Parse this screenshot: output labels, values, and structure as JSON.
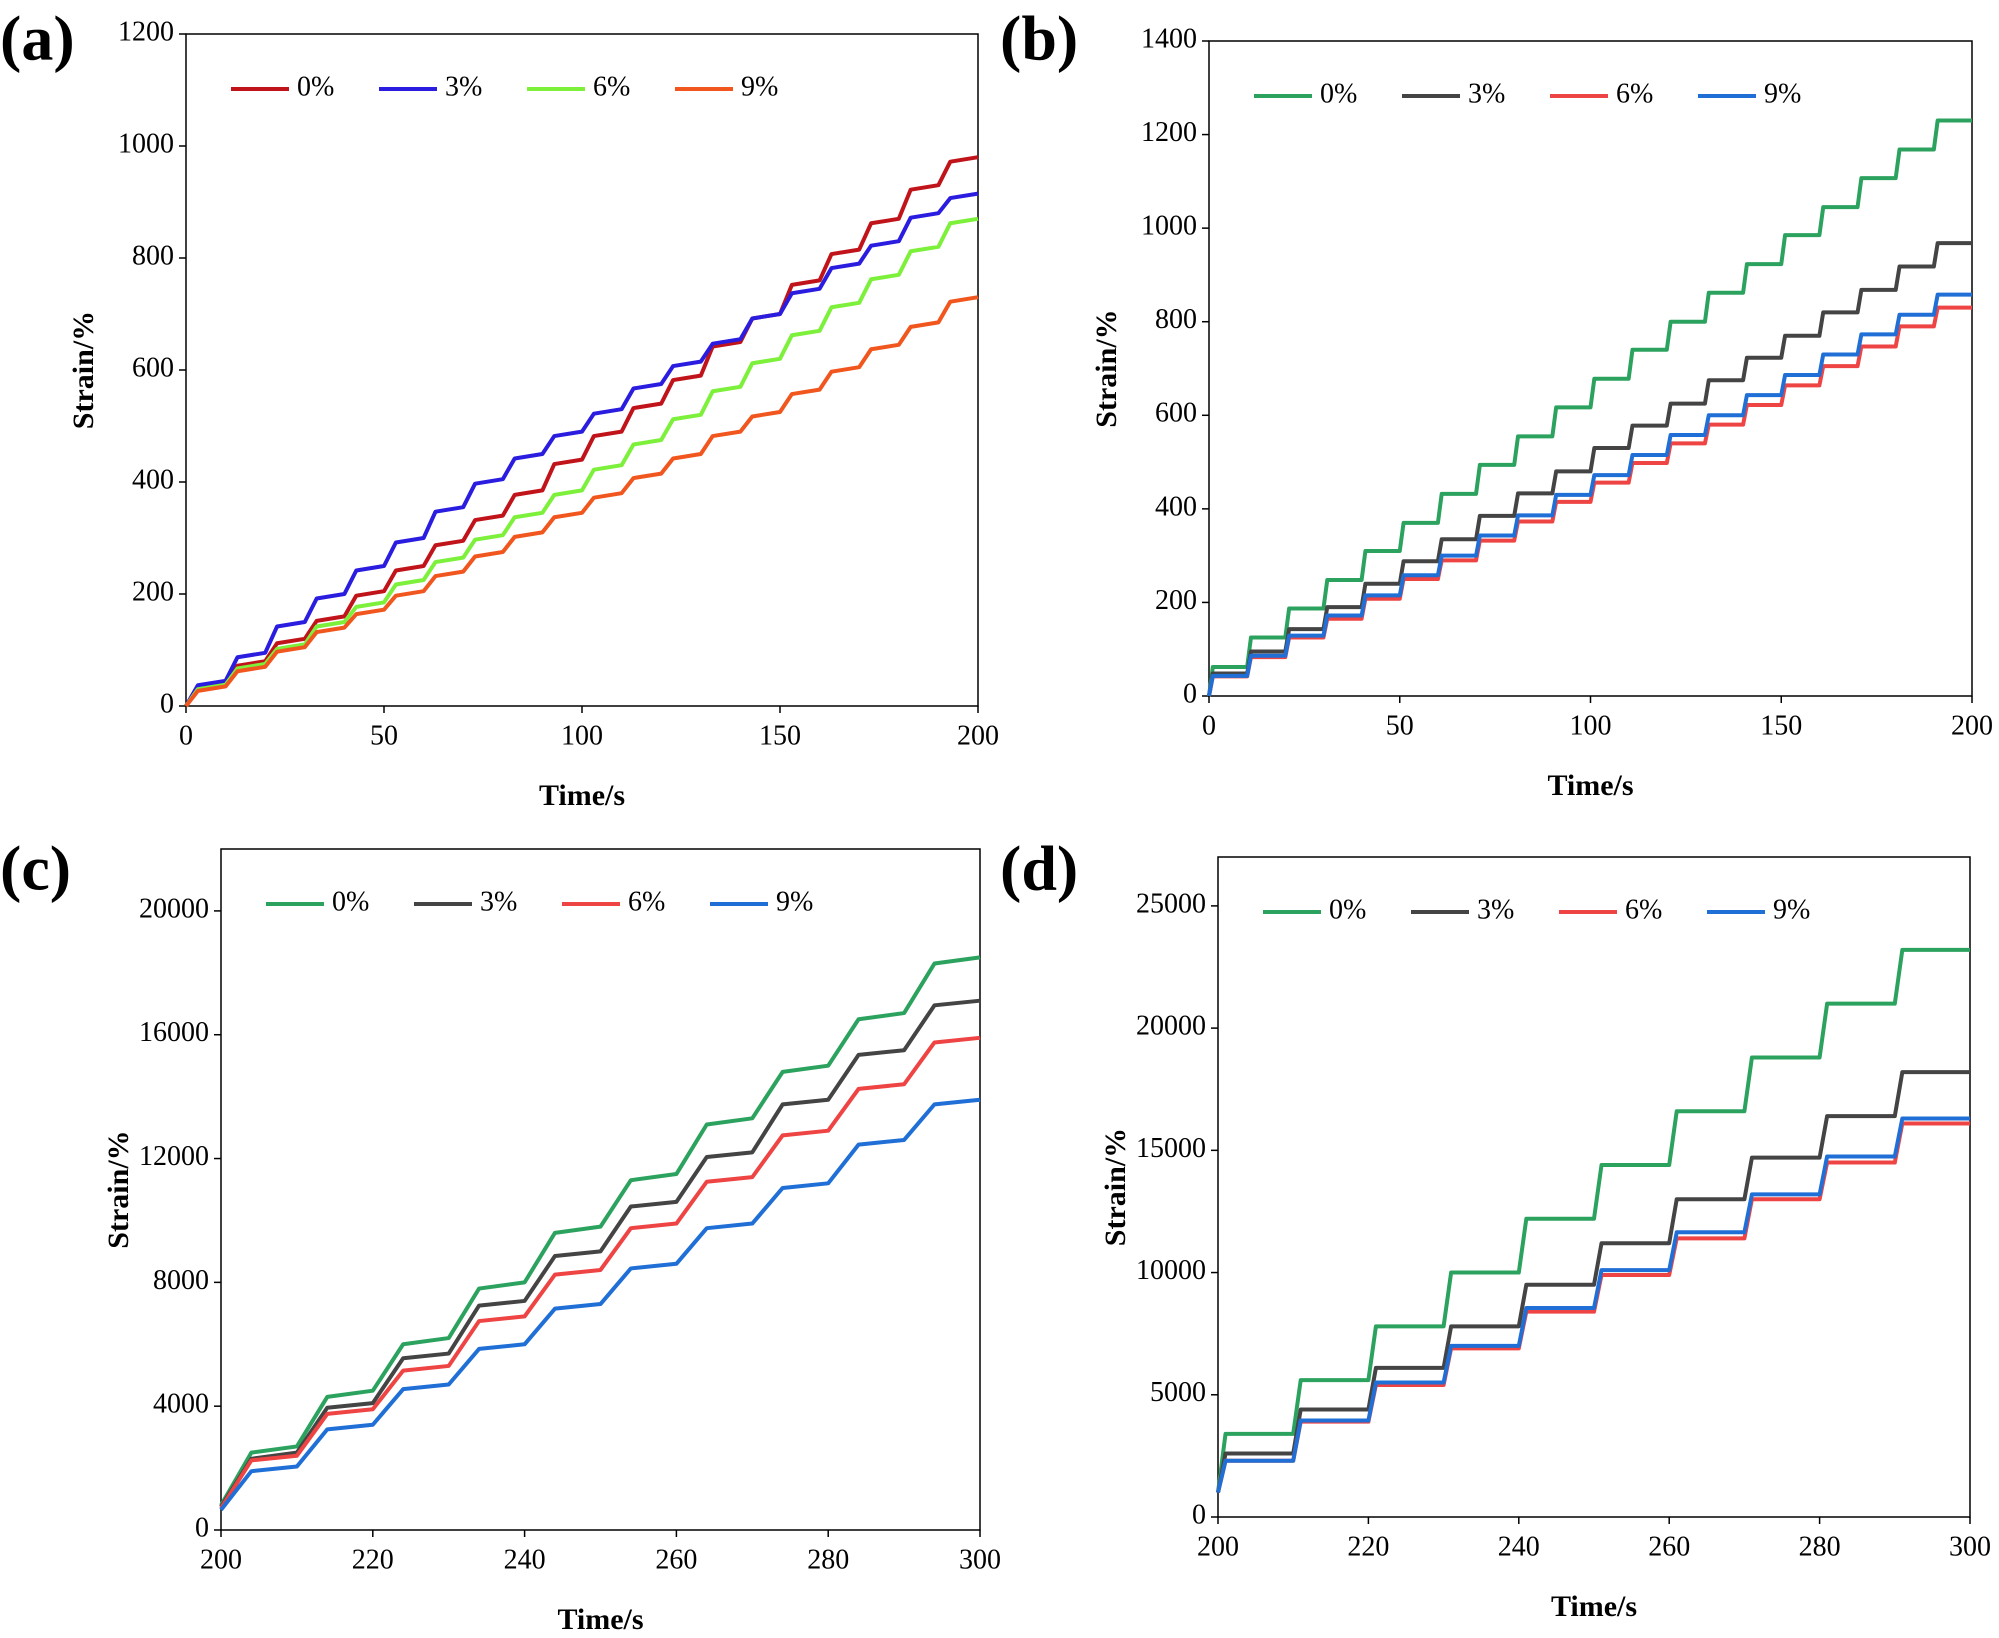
{
  "chart_data": [
    {
      "type": "line",
      "label": "(a)",
      "xlabel": "Time/s",
      "ylabel": "Strain/%",
      "x": [
        0,
        3,
        10,
        13,
        20,
        23,
        30,
        33,
        40,
        43,
        50,
        53,
        60,
        63,
        70,
        73,
        80,
        83,
        90,
        93,
        100,
        103,
        110,
        113,
        120,
        123,
        130,
        133,
        140,
        143,
        150,
        153,
        160,
        163,
        170,
        173,
        180,
        183,
        190,
        193,
        200
      ],
      "series": [
        {
          "name": "0%",
          "color": "#c0141a",
          "values": [
            0,
            32,
            40,
            72,
            80,
            112,
            120,
            152,
            160,
            197,
            205,
            242,
            250,
            287,
            295,
            332,
            340,
            377,
            385,
            432,
            440,
            482,
            490,
            532,
            540,
            582,
            590,
            642,
            650,
            692,
            700,
            752,
            760,
            807,
            815,
            862,
            870,
            922,
            930,
            972,
            980
          ]
        },
        {
          "name": "3%",
          "color": "#2a1de0",
          "values": [
            0,
            37,
            45,
            87,
            95,
            142,
            150,
            192,
            200,
            242,
            250,
            292,
            300,
            347,
            355,
            397,
            405,
            442,
            450,
            482,
            490,
            522,
            530,
            567,
            575,
            607,
            615,
            647,
            655,
            692,
            700,
            737,
            745,
            782,
            790,
            822,
            830,
            872,
            880,
            907,
            915
          ]
        },
        {
          "name": "6%",
          "color": "#7cf03a",
          "values": [
            0,
            30,
            38,
            67,
            75,
            102,
            110,
            142,
            150,
            177,
            185,
            217,
            225,
            257,
            265,
            297,
            305,
            337,
            345,
            377,
            385,
            422,
            430,
            467,
            475,
            512,
            520,
            562,
            570,
            612,
            620,
            662,
            670,
            712,
            720,
            762,
            770,
            812,
            820,
            862,
            870
          ]
        },
        {
          "name": "9%",
          "color": "#f0561e",
          "values": [
            0,
            27,
            35,
            62,
            70,
            97,
            105,
            132,
            140,
            164,
            172,
            197,
            205,
            232,
            240,
            267,
            275,
            302,
            310,
            337,
            345,
            372,
            380,
            407,
            415,
            442,
            450,
            482,
            490,
            517,
            525,
            557,
            565,
            597,
            605,
            637,
            645,
            677,
            685,
            722,
            730
          ]
        }
      ],
      "xlim": [
        0,
        200
      ],
      "xticks": [
        0,
        50,
        100,
        150,
        200
      ],
      "ylim": [
        0,
        1200
      ],
      "yticks": [
        0,
        200,
        400,
        600,
        800,
        1000,
        1200
      ],
      "legend": "upper left"
    },
    {
      "type": "line",
      "label": "(b)",
      "xlabel": "Time/s",
      "ylabel": "Strain/%",
      "x": [
        0,
        1,
        10,
        11,
        20,
        21,
        30,
        31,
        40,
        41,
        50,
        51,
        60,
        61,
        70,
        71,
        80,
        81,
        90,
        91,
        100,
        101,
        110,
        111,
        120,
        121,
        130,
        131,
        140,
        141,
        150,
        151,
        160,
        161,
        170,
        171,
        180,
        181,
        190,
        191,
        200
      ],
      "series": [
        {
          "name": "0%",
          "color": "#2ca25f",
          "values": [
            0,
            62,
            62,
            125,
            125,
            187,
            187,
            248,
            248,
            310,
            310,
            370,
            370,
            432,
            432,
            494,
            494,
            555,
            555,
            617,
            617,
            678,
            678,
            740,
            740,
            800,
            800,
            862,
            862,
            923,
            923,
            985,
            985,
            1045,
            1045,
            1107,
            1107,
            1168,
            1168,
            1230,
            1230
          ]
        },
        {
          "name": "3%",
          "color": "#444444",
          "values": [
            0,
            48,
            48,
            95,
            95,
            143,
            143,
            190,
            190,
            240,
            240,
            288,
            288,
            335,
            335,
            385,
            385,
            433,
            433,
            480,
            480,
            530,
            530,
            578,
            578,
            625,
            625,
            675,
            675,
            723,
            723,
            770,
            770,
            820,
            820,
            868,
            868,
            918,
            918,
            968,
            968
          ]
        },
        {
          "name": "6%",
          "color": "#ee4444",
          "values": [
            0,
            42,
            42,
            83,
            83,
            125,
            125,
            165,
            165,
            208,
            208,
            250,
            250,
            290,
            290,
            332,
            332,
            373,
            373,
            415,
            415,
            456,
            456,
            498,
            498,
            540,
            540,
            580,
            580,
            622,
            622,
            664,
            664,
            705,
            705,
            747,
            747,
            790,
            790,
            830,
            830
          ]
        },
        {
          "name": "9%",
          "color": "#1f6fd6",
          "values": [
            0,
            43,
            43,
            86,
            86,
            129,
            129,
            172,
            172,
            215,
            215,
            258,
            258,
            300,
            300,
            343,
            343,
            386,
            386,
            430,
            430,
            472,
            472,
            515,
            515,
            558,
            558,
            600,
            600,
            643,
            643,
            686,
            686,
            730,
            730,
            773,
            773,
            815,
            815,
            858,
            858
          ]
        }
      ],
      "xlim": [
        0,
        200
      ],
      "xticks": [
        0,
        50,
        100,
        150,
        200
      ],
      "ylim": [
        0,
        1400
      ],
      "yticks": [
        0,
        200,
        400,
        600,
        800,
        1000,
        1200,
        1400
      ],
      "legend": "upper left"
    },
    {
      "type": "line",
      "label": "(c)",
      "xlabel": "Time/s",
      "ylabel": "Strain/%",
      "x": [
        200,
        204,
        210,
        214,
        220,
        224,
        230,
        234,
        240,
        244,
        250,
        254,
        260,
        264,
        270,
        274,
        280,
        284,
        290,
        294,
        300
      ],
      "series": [
        {
          "name": "0%",
          "color": "#2ca25f",
          "values": [
            800,
            2500,
            2700,
            4300,
            4500,
            6000,
            6200,
            7800,
            8000,
            9600,
            9800,
            11300,
            11500,
            13100,
            13300,
            14800,
            15000,
            16500,
            16700,
            18300,
            18500
          ]
        },
        {
          "name": "3%",
          "color": "#444444",
          "values": [
            750,
            2300,
            2500,
            3950,
            4100,
            5550,
            5700,
            7250,
            7400,
            8850,
            9000,
            10450,
            10600,
            12050,
            12200,
            13750,
            13900,
            15350,
            15500,
            16950,
            17100
          ]
        },
        {
          "name": "6%",
          "color": "#ee4444",
          "values": [
            700,
            2250,
            2400,
            3750,
            3900,
            5150,
            5300,
            6750,
            6900,
            8250,
            8400,
            9750,
            9900,
            11250,
            11400,
            12750,
            12900,
            14250,
            14400,
            15750,
            15900
          ]
        },
        {
          "name": "9%",
          "color": "#1f6fd6",
          "values": [
            650,
            1900,
            2050,
            3250,
            3400,
            4550,
            4700,
            5850,
            6000,
            7150,
            7300,
            8450,
            8600,
            9750,
            9900,
            11050,
            11200,
            12450,
            12600,
            13750,
            13900
          ]
        }
      ],
      "xlim": [
        200,
        300
      ],
      "xticks": [
        200,
        220,
        240,
        260,
        280,
        300
      ],
      "ylim": [
        0,
        22000
      ],
      "yticks": [
        0,
        4000,
        8000,
        12000,
        16000,
        20000
      ],
      "legend": "upper left"
    },
    {
      "type": "line",
      "label": "(d)",
      "xlabel": "Time/s",
      "ylabel": "Strain/%",
      "x": [
        200,
        201,
        210,
        211,
        220,
        221,
        230,
        231,
        240,
        241,
        250,
        251,
        260,
        261,
        270,
        271,
        280,
        281,
        290,
        291,
        300
      ],
      "series": [
        {
          "name": "0%",
          "color": "#2ca25f",
          "values": [
            1000,
            3400,
            3400,
            5600,
            5600,
            7800,
            7800,
            10000,
            10000,
            12200,
            12200,
            14400,
            14400,
            16600,
            16600,
            18800,
            18800,
            21000,
            21000,
            23200,
            23200
          ]
        },
        {
          "name": "3%",
          "color": "#444444",
          "values": [
            1000,
            2600,
            2600,
            4400,
            4400,
            6100,
            6100,
            7800,
            7800,
            9500,
            9500,
            11200,
            11200,
            13000,
            13000,
            14700,
            14700,
            16400,
            16400,
            18200,
            18200
          ]
        },
        {
          "name": "6%",
          "color": "#ee4444",
          "values": [
            1000,
            2300,
            2300,
            3900,
            3900,
            5400,
            5400,
            6900,
            6900,
            8400,
            8400,
            9900,
            9900,
            11400,
            11400,
            13000,
            13000,
            14500,
            14500,
            16100,
            16100
          ]
        },
        {
          "name": "9%",
          "color": "#1f6fd6",
          "values": [
            1000,
            2300,
            2300,
            3950,
            3950,
            5500,
            5500,
            7000,
            7000,
            8550,
            8550,
            10100,
            10100,
            11650,
            11650,
            13200,
            13200,
            14750,
            14750,
            16300,
            16300
          ]
        }
      ],
      "xlim": [
        200,
        300
      ],
      "xticks": [
        200,
        220,
        240,
        260,
        280,
        300
      ],
      "ylim": [
        0,
        27000
      ],
      "yticks": [
        0,
        5000,
        10000,
        15000,
        20000,
        25000
      ],
      "legend": "upper left"
    }
  ]
}
